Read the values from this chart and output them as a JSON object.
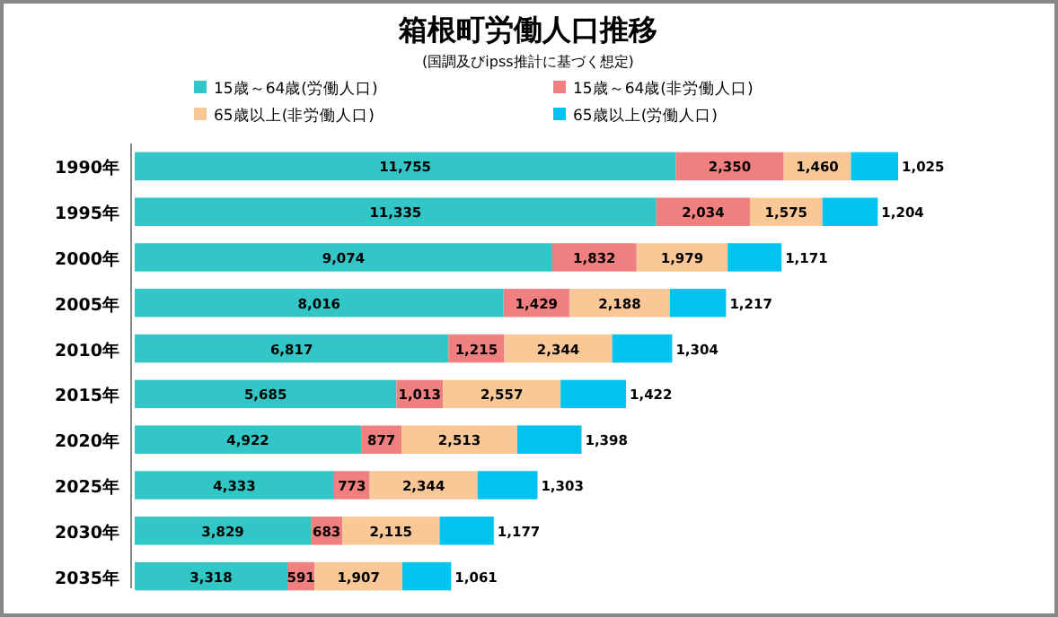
{
  "chart_data": {
    "type": "bar",
    "orientation": "horizontal",
    "stacked": true,
    "legend": "top",
    "title": "箱根町労働人口推移",
    "subtitle": "(国調及びipss推計に基づく想定)",
    "categories": [
      "1990年",
      "1995年",
      "2000年",
      "2005年",
      "2010年",
      "2015年",
      "2020年",
      "2025年",
      "2030年",
      "2035年"
    ],
    "series": [
      {
        "name": "15歳～64歳(労働人口)",
        "color": "#33c6c6",
        "values": [
          11755,
          11335,
          9074,
          8016,
          6817,
          5685,
          4922,
          4333,
          3829,
          3318
        ],
        "value_labels": [
          "11,755",
          "11,335",
          "9,074",
          "8,016",
          "6,817",
          "5,685",
          "4,922",
          "4,333",
          "3,829",
          "3,318"
        ]
      },
      {
        "name": "15歳～64歳(非労働人口)",
        "color": "#f08080",
        "values": [
          2350,
          2034,
          1832,
          1429,
          1215,
          1013,
          877,
          773,
          683,
          591
        ],
        "value_labels": [
          "2,350",
          "2,034",
          "1,832",
          "1,429",
          "1,215",
          "1,013",
          "877",
          "773",
          "683",
          "591"
        ]
      },
      {
        "name": "65歳以上(非労働人口)",
        "color": "#f9c896",
        "values": [
          1460,
          1575,
          1979,
          2188,
          2344,
          2557,
          2513,
          2344,
          2115,
          1907
        ],
        "value_labels": [
          "1,460",
          "1,575",
          "1,979",
          "2,188",
          "2,344",
          "2,557",
          "2,513",
          "2,344",
          "2,115",
          "1,907"
        ]
      },
      {
        "name": "65歳以上(労働人口)",
        "color": "#00c3f0",
        "values": [
          1025,
          1204,
          1171,
          1217,
          1304,
          1422,
          1398,
          1303,
          1177,
          1061
        ],
        "value_labels": [
          "1,025",
          "1,204",
          "1,171",
          "1,217",
          "1,304",
          "1,422",
          "1,398",
          "1,303",
          "1,177",
          "1,061"
        ]
      }
    ]
  }
}
